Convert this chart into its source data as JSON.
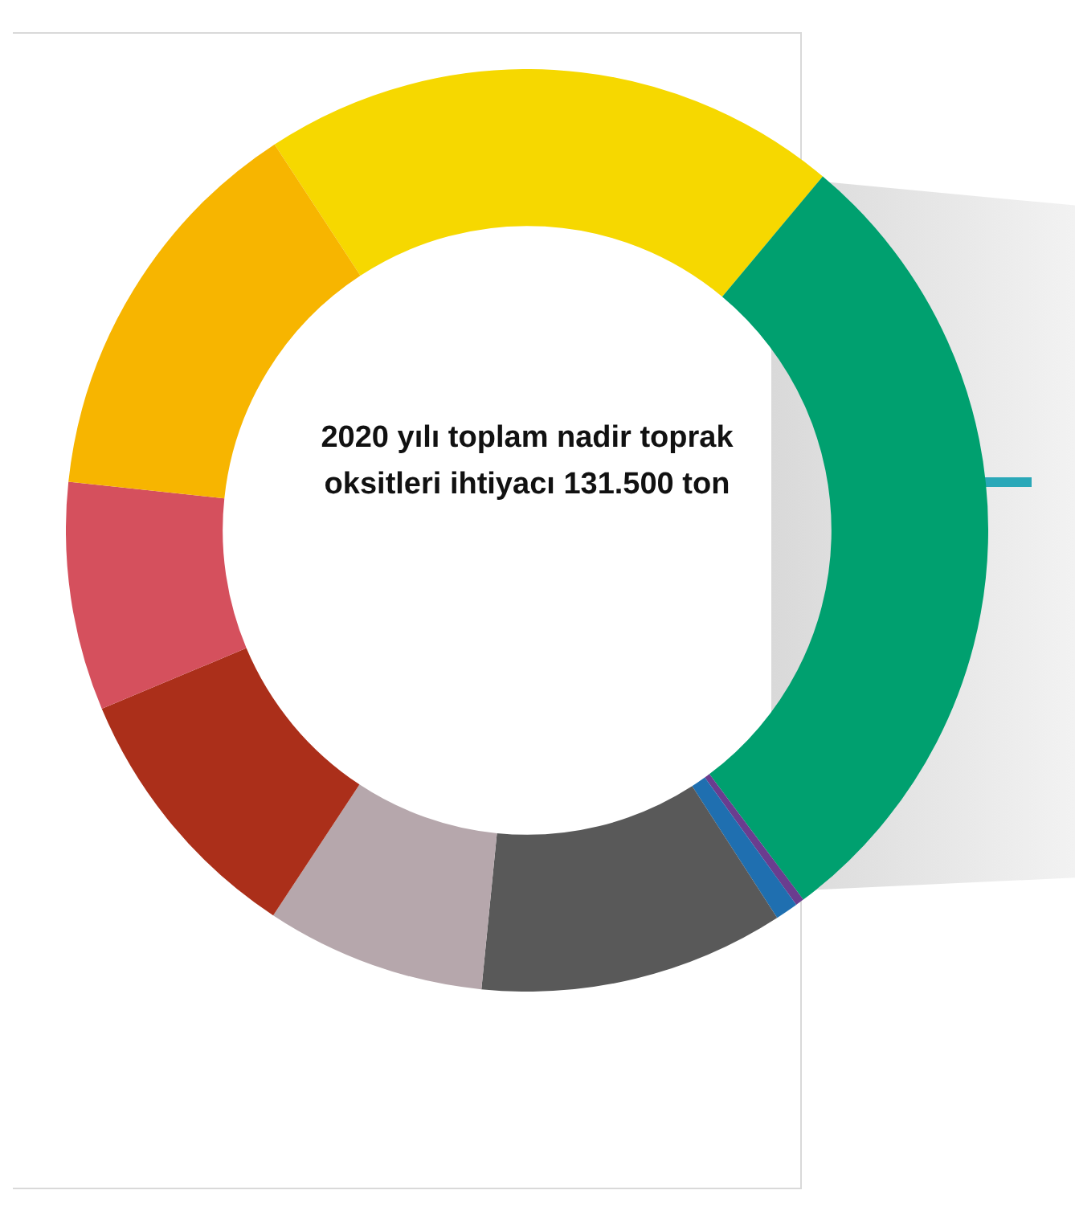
{
  "chart_data": {
    "type": "donut",
    "title": "2020 yılı toplam nadir toprak oksitleri ihtiyacı 131.500 ton",
    "categories": [
      null,
      null,
      null,
      null,
      null,
      null,
      null,
      null,
      null
    ],
    "values": [
      20.3,
      28.7,
      0.3,
      0.8,
      10.7,
      7.7,
      9.4,
      8.0,
      14.1
    ],
    "colors": [
      "#f6d800",
      "#00a06f",
      "#6a3d8f",
      "#1f6fb0",
      "#595959",
      "#b6a7ac",
      "#ab2f1a",
      "#d5505d",
      "#f7b500"
    ]
  }
}
